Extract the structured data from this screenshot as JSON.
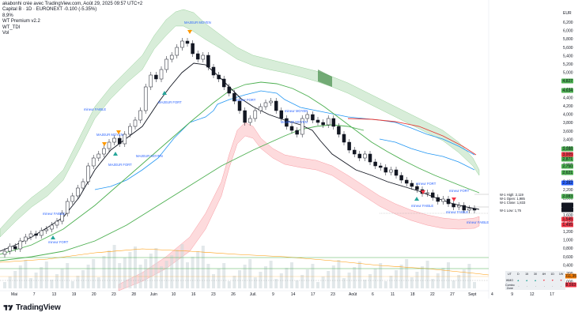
{
  "header": {
    "author_line": "akabonhi crée avec TradingView.com, Août 29, 2025 09:57 UTC+2",
    "symbol_line": "Capital B · 1D · EURONEXT  -0.100 (-5.35%)",
    "lines": [
      "8,9% ",
      "WT Premium v2.2",
      "WT_TDI",
      "Vol"
    ]
  },
  "currency": "EUR",
  "price_axis": {
    "ticks": [
      "6,200",
      "6,000",
      "5,800",
      "5,600",
      "5,400",
      "5,200",
      "5,000",
      "4,800",
      "4,600",
      "4,400",
      "4,200",
      "4,000",
      "3,800",
      "3,600",
      "3,400",
      "3,200",
      "3,000",
      "2,800",
      "2,600",
      "2,400",
      "2,200",
      "2,000",
      "1,800",
      "1,600",
      "1,400",
      "1,200",
      "1,000",
      "0,800",
      "0,600",
      "0,400",
      "0,200",
      "0,000"
    ],
    "badges": [
      {
        "text": "4,827",
        "color": "#4caf50"
      },
      {
        "text": "4,634",
        "color": "#4caf50"
      },
      {
        "text": "3,088",
        "color": "#4caf50"
      },
      {
        "text": "3,005",
        "color": "#f23645"
      },
      {
        "text": "2,871",
        "color": "#4caf50"
      },
      {
        "text": "2,750",
        "color": "#4caf50"
      },
      {
        "text": "2,621",
        "color": "#4caf50"
      },
      {
        "text": "2,382",
        "color": "#2962ff"
      },
      {
        "text": "2,083",
        "color": "#4caf50"
      },
      {
        "text": "1,833",
        "color": "#131722"
      },
      {
        "text": "1,760",
        "color": "#131722"
      },
      {
        "text": "1,545",
        "color": "#f23645"
      },
      {
        "text": "1,495",
        "color": "#f23645"
      }
    ],
    "lower_badges": [
      {
        "text": "2,011,35",
        "color": "#f57c00"
      },
      {
        "text": "488,593",
        "color": "#f23645"
      }
    ]
  },
  "date_axis": [
    "Mai",
    "7",
    "13",
    "19",
    "20",
    "23",
    "28",
    "Juin",
    "10",
    "16",
    "23",
    "26",
    "Juil.",
    "9",
    "14",
    "17",
    "23",
    "Août",
    "6",
    "11",
    "18",
    "22",
    "27",
    "Sept",
    "4",
    "9",
    "12",
    "17"
  ],
  "signals": [
    {
      "text": "MAJEUR MOYEN",
      "color": "#2962ff"
    },
    {
      "text": "MAJEUR FORT",
      "color": "#2962ff"
    },
    {
      "text": "MAJEUR MOYEN",
      "color": "#2962ff"
    },
    {
      "text": "MAJEUR FORT",
      "color": "#2962ff"
    },
    {
      "text": "MAJEUR MOYEN",
      "color": "#2962ff"
    },
    {
      "text": "mineur FAIBLE",
      "color": "#2962ff"
    },
    {
      "text": "mineur FAIBLE",
      "color": "#2962ff"
    },
    {
      "text": "mineur FORT",
      "color": "#2962ff"
    },
    {
      "text": "mineur FORT",
      "color": "#2962ff"
    },
    {
      "text": "mineur MOYEN",
      "color": "#2962ff"
    },
    {
      "text": "MAJEUR MOYEN",
      "color": "#2962ff"
    },
    {
      "text": "mineur FORT",
      "color": "#2962ff"
    },
    {
      "text": "mineur FAIBLE",
      "color": "#2962ff"
    },
    {
      "text": "mineur FORT",
      "color": "#2962ff"
    },
    {
      "text": "mineur FAIBLE",
      "color": "#2962ff"
    },
    {
      "text": "mineur FAIBLE",
      "color": "#2962ff"
    }
  ],
  "level_labels": [
    "W-1 High: 2,119",
    "W-1 Open: 1,985",
    "W-1 Close: 1,833",
    "W-1 Low: 1,75"
  ],
  "table": {
    "row1": [
      "UT",
      "D",
      "15",
      "30",
      "4H",
      "1D",
      "1W"
    ],
    "row2": [
      "WMO",
      "▲",
      "▲",
      "▲",
      "▼",
      "▼",
      "▼"
    ],
    "row3": [
      "Combo Zone",
      "·",
      "·",
      "·",
      "·",
      "·",
      "·"
    ]
  },
  "brand": "TradingView",
  "colors": {
    "up": "#131722",
    "down": "#131722",
    "green_band": "#4caf50",
    "red_band": "#f23645",
    "blue": "#2196f3",
    "ema_black": "#131722"
  }
}
